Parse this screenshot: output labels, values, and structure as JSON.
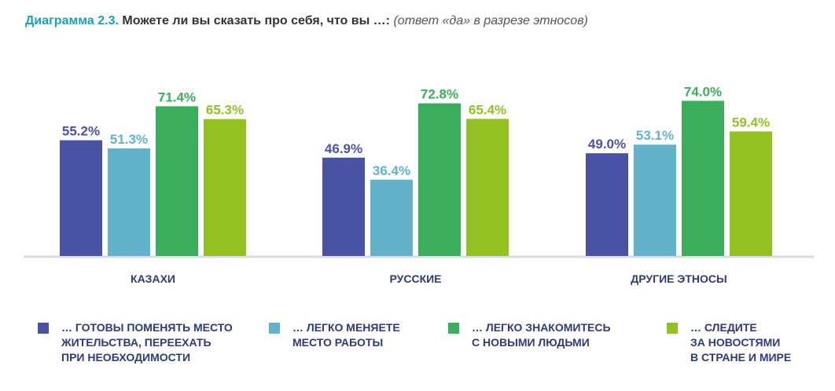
{
  "title": {
    "prefix": "Диаграмма 2.3.",
    "main": "Можете ли вы сказать про себя, что вы …:",
    "note": "(ответ «да» в разрезе этносов)"
  },
  "chart_data": {
    "type": "bar",
    "categories": [
      "КАЗАХИ",
      "РУССКИЕ",
      "ДРУГИЕ ЭТНОСЫ"
    ],
    "series": [
      {
        "name": "… ГОТОВЫ ПОМЕНЯТЬ МЕСТО\nЖИТЕЛЬСТВА, ПЕРЕЕХАТЬ\nПРИ НЕОБХОДИМОСТИ",
        "color": "#4a53a3",
        "values": [
          55.2,
          46.9,
          49.0
        ],
        "labels": [
          "55.2%",
          "46.9%",
          "49.0%"
        ]
      },
      {
        "name": "… ЛЕГКО МЕНЯЕТЕ\nМЕСТО РАБОТЫ",
        "color": "#62b3c9",
        "values": [
          51.3,
          36.4,
          53.1
        ],
        "labels": [
          "51.3%",
          "36.4%",
          "53.1%"
        ]
      },
      {
        "name": "… ЛЕГКО ЗНАКОМИТЕСЬ\nС НОВЫМИ ЛЮДЬМИ",
        "color": "#3bad5c",
        "values": [
          71.4,
          72.8,
          74.0
        ],
        "labels": [
          "71.4%",
          "72.8%",
          "74.0%"
        ]
      },
      {
        "name": "… СЛЕДИТЕ\nЗА НОВОСТЯМИ\nВ СТРАНЕ И МИРЕ",
        "color": "#93c123",
        "values": [
          65.3,
          65.4,
          59.4
        ],
        "labels": [
          "65.3%",
          "65.4%",
          "59.4%"
        ]
      }
    ],
    "ylim": [
      0,
      100
    ],
    "grid": false,
    "legend_position": "bottom"
  },
  "colors": {
    "title_accent": "#1aa3b4",
    "category_label": "#2f3a7a",
    "baseline": "#d8dbe6"
  }
}
